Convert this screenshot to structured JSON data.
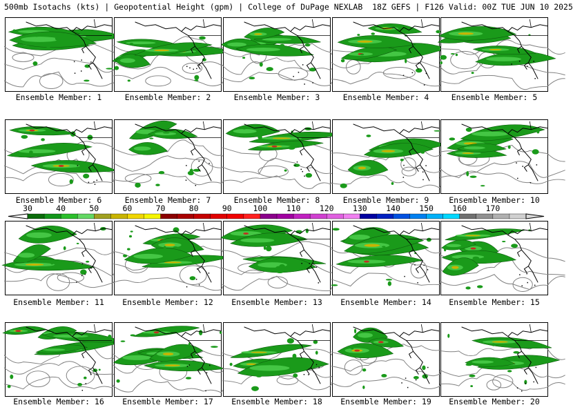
{
  "header": {
    "title": "500mb Isotachs (kts) | Geopotential Height (gpm) | College of DuPage NEXLAB  18Z GEFS | F126 Valid: 00Z TUE JUN 10 2025"
  },
  "member_label_prefix": "Ensemble Member:",
  "members": [
    1,
    2,
    3,
    4,
    5,
    6,
    7,
    8,
    9,
    10,
    11,
    12,
    13,
    14,
    15,
    16,
    17,
    18,
    19,
    20
  ],
  "colorbar": {
    "labels": [
      "30",
      "40",
      "50",
      "60",
      "70",
      "80",
      "90",
      "100",
      "110",
      "120",
      "130",
      "140",
      "150",
      "160",
      "170"
    ],
    "colors": [
      "#0a6b0a",
      "#12961a",
      "#2bbf2b",
      "#63d863",
      "#a0a020",
      "#c8b400",
      "#f0d600",
      "#f5f500",
      "#8b0000",
      "#a80000",
      "#c40000",
      "#e00000",
      "#f00000",
      "#ff2020",
      "#8b008b",
      "#a000a0",
      "#c020c0",
      "#d040d0",
      "#e060e0",
      "#f080f0",
      "#0000a0",
      "#0020c0",
      "#0050e0",
      "#0080f0",
      "#00b0f8",
      "#00d8ff",
      "#707070",
      "#909090",
      "#b0b0b0",
      "#d0d0d0"
    ]
  },
  "map_colors": {
    "jet_fill": "#1a9a1a",
    "jet_light": "#44c644",
    "jet_core": "#c8b400",
    "jet_max": "#c03020",
    "height_contour": "#808080",
    "coastline": "#000000"
  }
}
